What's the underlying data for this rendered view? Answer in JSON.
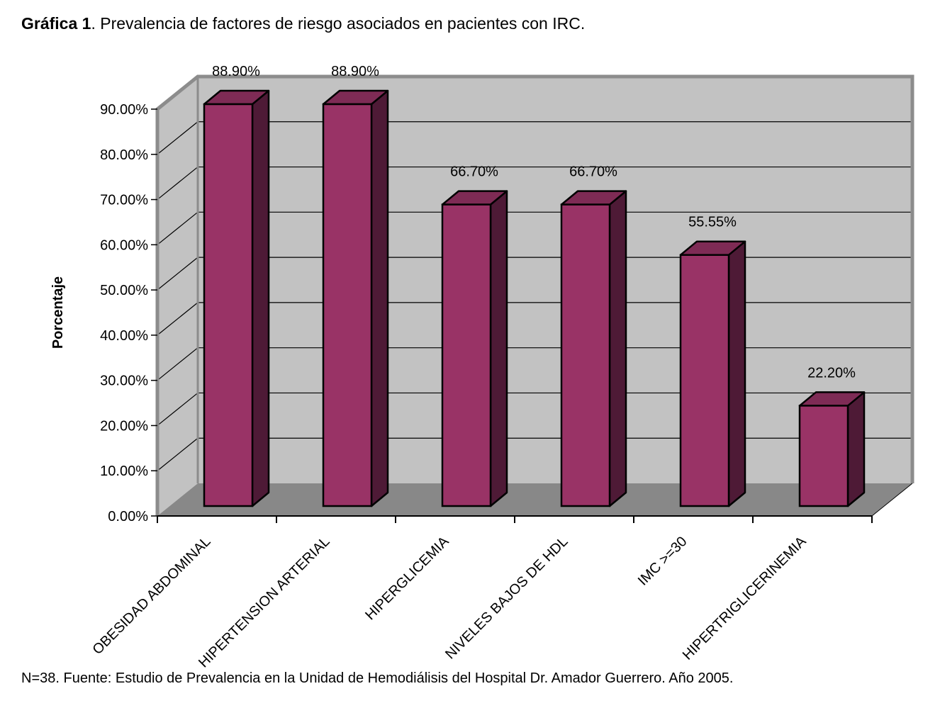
{
  "page": {
    "title_bold": "Gráfica 1",
    "title_rest": ". Prevalencia de factores de riesgo asociados en pacientes con IRC.",
    "footnote": "N=38. Fuente: Estudio de Prevalencia en la Unidad de Hemodiálisis del Hospital Dr. Amador Guerrero. Año 2005."
  },
  "chart_data": {
    "type": "bar",
    "style": "3d-column",
    "title": "",
    "categories": [
      "OBESIDAD ABDOMINAL",
      "HIPERTENSION ARTERIAL",
      "HIPERGLICEMIA",
      "NIVELES BAJOS DE HDL",
      "IMC >=30",
      "HIPERTRIGLICERINEMIA"
    ],
    "values": [
      88.9,
      88.9,
      66.7,
      66.7,
      55.55,
      22.2
    ],
    "data_labels": [
      "88.90%",
      "88.90%",
      "66.70%",
      "66.70%",
      "55.55%",
      "22.20%"
    ],
    "xlabel": "",
    "ylabel": "Porcentaje",
    "ylim": [
      0,
      90
    ],
    "ytick_step": 10,
    "ytick_labels": [
      "0.00%",
      "10.00%",
      "20.00%",
      "30.00%",
      "40.00%",
      "50.00%",
      "60.00%",
      "70.00%",
      "80.00%",
      "90.00%"
    ],
    "grid": true,
    "legend": false,
    "colors": {
      "bar_front": "#993366",
      "bar_top": "#7E2B55",
      "bar_side": "#4E1A36",
      "bar_outline": "#000000",
      "wall": "#C2C2C2",
      "floor": "#888888",
      "wall_border": "#8C8C8C",
      "gridline": "#000000",
      "axis": "#000000",
      "text": "#000000",
      "background": "#FFFFFF"
    }
  }
}
